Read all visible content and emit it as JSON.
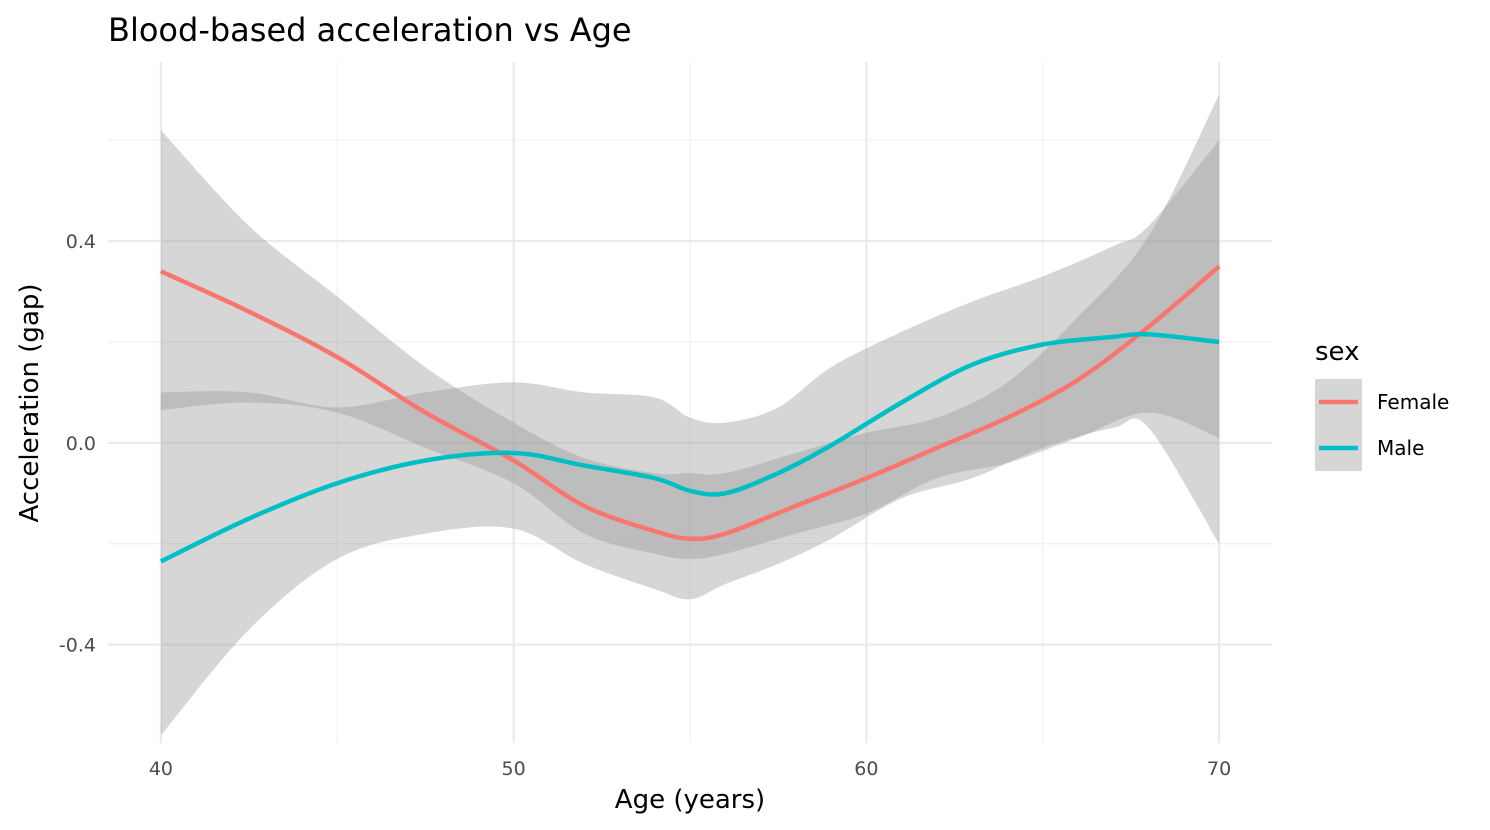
{
  "chart_data": {
    "type": "line",
    "title": "Blood-based acceleration vs Age",
    "xlabel": "Age (years)",
    "ylabel": "Acceleration (gap)",
    "xlim": [
      38.5,
      71.5
    ],
    "ylim": [
      -0.595,
      0.755
    ],
    "x_ticks": [
      40,
      50,
      60,
      70
    ],
    "x_tick_labels": [
      "40",
      "50",
      "60",
      "70"
    ],
    "y_ticks": [
      -0.4,
      0.0,
      0.4
    ],
    "y_tick_labels": [
      "-0.4",
      "0.0",
      "0.4"
    ],
    "grid": true,
    "legend": {
      "title": "sex",
      "placement": "right"
    },
    "series": [
      {
        "name": "Female",
        "color": "#F8766D",
        "x": [
          40,
          42.5,
          45,
          47.5,
          50,
          52,
          54,
          55,
          56,
          58,
          60,
          62,
          64,
          66,
          68,
          70
        ],
        "y": [
          0.34,
          0.26,
          0.17,
          0.06,
          -0.035,
          -0.125,
          -0.175,
          -0.19,
          -0.18,
          -0.125,
          -0.07,
          -0.01,
          0.05,
          0.125,
          0.23,
          0.35
        ],
        "ci_lower": [
          0.065,
          0.08,
          0.06,
          -0.01,
          -0.08,
          -0.18,
          -0.22,
          -0.23,
          -0.22,
          -0.18,
          -0.14,
          -0.07,
          -0.04,
          0.01,
          0.06,
          0.01
        ],
        "ci_upper": [
          0.62,
          0.43,
          0.29,
          0.15,
          0.04,
          -0.03,
          -0.06,
          -0.06,
          -0.06,
          -0.02,
          0.02,
          0.05,
          0.12,
          0.25,
          0.41,
          0.69
        ]
      },
      {
        "name": "Male",
        "color": "#00BFC4",
        "x": [
          40,
          42.5,
          45,
          47.5,
          50,
          52,
          54,
          55,
          56,
          57.5,
          59,
          61,
          63,
          65,
          67,
          68,
          70
        ],
        "y": [
          -0.235,
          -0.15,
          -0.08,
          -0.035,
          -0.02,
          -0.045,
          -0.07,
          -0.095,
          -0.1,
          -0.06,
          -0.005,
          0.08,
          0.155,
          0.195,
          0.21,
          0.215,
          0.2
        ],
        "ci_lower": [
          -0.58,
          -0.37,
          -0.23,
          -0.18,
          -0.17,
          -0.24,
          -0.29,
          -0.31,
          -0.28,
          -0.24,
          -0.19,
          -0.11,
          -0.07,
          -0.01,
          0.03,
          0.03,
          -0.2
        ],
        "ci_upper": [
          0.1,
          0.1,
          0.07,
          0.1,
          0.12,
          0.1,
          0.09,
          0.05,
          0.04,
          0.07,
          0.15,
          0.22,
          0.28,
          0.33,
          0.39,
          0.43,
          0.6
        ]
      }
    ]
  }
}
